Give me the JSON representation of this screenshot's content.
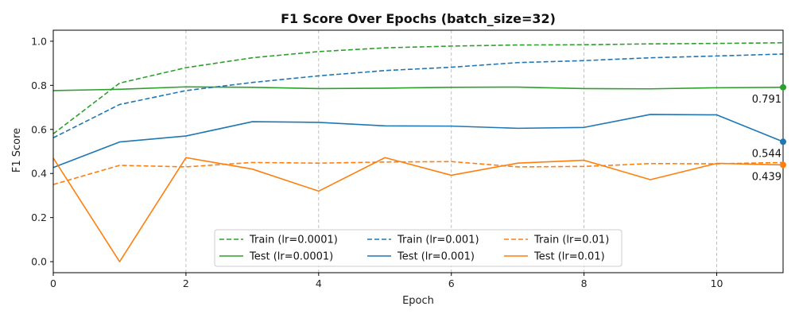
{
  "chart_data": {
    "type": "line",
    "title": "F1 Score Over Epochs (batch_size=32)",
    "xlabel": "Epoch",
    "ylabel": "F1 Score",
    "xlim": [
      0,
      11
    ],
    "ylim": [
      -0.05,
      1.05
    ],
    "xticks": [
      0,
      2,
      4,
      6,
      8,
      10
    ],
    "yticks": [
      0.0,
      0.2,
      0.4,
      0.6,
      0.8,
      1.0
    ],
    "ytick_labels": [
      "0.0",
      "0.2",
      "0.4",
      "0.6",
      "0.8",
      "1.0"
    ],
    "grid": "vertical dashed at x ticks",
    "legend_position": "bottom-center",
    "legend_columns": 3,
    "x": [
      0,
      1,
      2,
      3,
      4,
      5,
      6,
      7,
      8,
      9,
      10,
      11
    ],
    "series": [
      {
        "name": "Train (lr=0.0001)",
        "style": "dashed",
        "color": "#2ca02c",
        "values": [
          0.58,
          0.81,
          0.88,
          0.925,
          0.953,
          0.97,
          0.978,
          0.983,
          0.984,
          0.988,
          0.99,
          0.993
        ]
      },
      {
        "name": "Test (lr=0.0001)",
        "style": "solid",
        "color": "#2ca02c",
        "values": [
          0.776,
          0.782,
          0.793,
          0.791,
          0.785,
          0.787,
          0.791,
          0.792,
          0.785,
          0.784,
          0.789,
          0.791
        ]
      },
      {
        "name": "Train (lr=0.001)",
        "style": "dashed",
        "color": "#1f77b4",
        "values": [
          0.562,
          0.713,
          0.776,
          0.813,
          0.843,
          0.867,
          0.882,
          0.903,
          0.912,
          0.925,
          0.933,
          0.942
        ]
      },
      {
        "name": "Test (lr=0.001)",
        "style": "solid",
        "color": "#1f77b4",
        "values": [
          0.427,
          0.543,
          0.57,
          0.635,
          0.632,
          0.616,
          0.615,
          0.605,
          0.609,
          0.668,
          0.666,
          0.544
        ]
      },
      {
        "name": "Train (lr=0.01)",
        "style": "dashed",
        "color": "#ff7f0e",
        "values": [
          0.35,
          0.437,
          0.43,
          0.45,
          0.447,
          0.452,
          0.454,
          0.43,
          0.432,
          0.445,
          0.444,
          0.45
        ]
      },
      {
        "name": "Test (lr=0.01)",
        "style": "solid",
        "color": "#ff7f0e",
        "values": [
          0.47,
          0.0,
          0.472,
          0.42,
          0.32,
          0.472,
          0.392,
          0.447,
          0.46,
          0.372,
          0.446,
          0.439
        ]
      }
    ],
    "end_annotations": [
      {
        "series": "Test (lr=0.0001)",
        "text": "0.791"
      },
      {
        "series": "Test (lr=0.001)",
        "text": "0.544"
      },
      {
        "series": "Test (lr=0.01)",
        "text": "0.439"
      }
    ]
  }
}
